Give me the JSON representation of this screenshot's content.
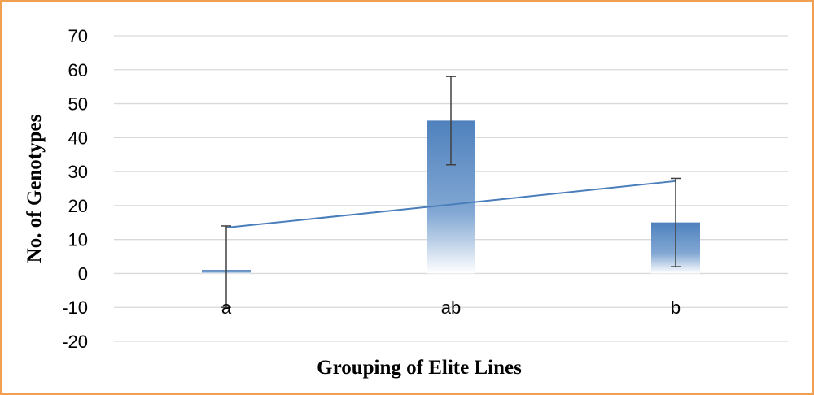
{
  "chart_data": {
    "type": "bar",
    "title": "",
    "xlabel": "Grouping of Elite Lines",
    "ylabel": "No. of  Genotypes",
    "categories": [
      "a",
      "ab",
      "b"
    ],
    "series": [
      {
        "type": "bar",
        "values": [
          1,
          45,
          15
        ],
        "error_low": [
          -10,
          32,
          2
        ],
        "error_high": [
          14,
          58,
          28
        ],
        "color": "#4F81BD"
      },
      {
        "type": "line",
        "values": [
          13.5,
          20.3,
          27.2
        ],
        "color": "#4A7EBB"
      }
    ],
    "ylim": [
      -20,
      70
    ],
    "yticks": [
      70,
      60,
      50,
      40,
      30,
      20,
      10,
      0,
      -10,
      -20
    ],
    "grid": true,
    "legend": "none"
  },
  "colors": {
    "border": "#F0A050",
    "gridline": "#D9D9D9",
    "bar": "#4F81BD",
    "error_bar": "#404040",
    "trend_line": "#4A7EBB"
  }
}
